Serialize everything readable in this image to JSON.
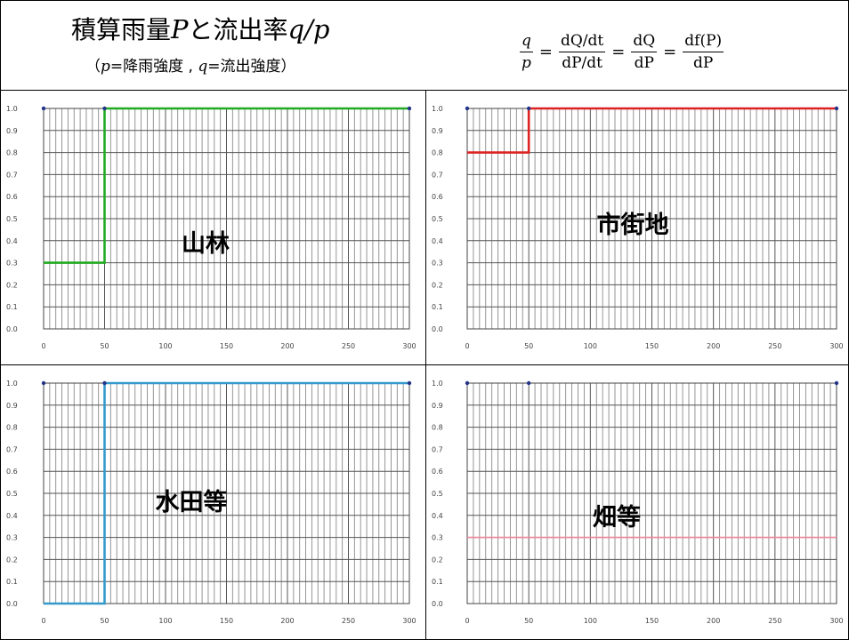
{
  "header": {
    "title_kanji": "積算雨量",
    "title_P": "P",
    "title_mid": "と流出率",
    "title_qp": "q/p",
    "subtitle_open": "（",
    "subtitle_p": "p",
    "subtitle_mid": "=降雨強度 , ",
    "subtitle_q": "q",
    "subtitle_end": "=流出強度）",
    "formula": {
      "lhs_num": "q",
      "lhs_den": "p",
      "eq": "=",
      "f1_num": "dQ/dt",
      "f1_den": "dP/dt",
      "f2_num": "dQ",
      "f2_den": "dP",
      "f3_num": "df(P)",
      "f3_den": "dP"
    }
  },
  "chart_data": [
    {
      "type": "line",
      "label": "山林",
      "color": "#22aa22",
      "x": [
        0,
        50,
        50,
        300
      ],
      "y": [
        0.3,
        0.3,
        1.0,
        1.0
      ],
      "xlim": [
        0,
        300
      ],
      "ylim": [
        0.0,
        1.0
      ],
      "x_ticks": [
        "0",
        "50",
        "100",
        "150",
        "200",
        "250",
        "300"
      ],
      "y_ticks": [
        "0.0",
        "0.1",
        "0.2",
        "0.3",
        "0.4",
        "0.5",
        "0.6",
        "0.7",
        "0.8",
        "0.9",
        "1.0"
      ],
      "markers": [
        {
          "x": 0,
          "y": 1.0
        },
        {
          "x": 50,
          "y": 1.0
        },
        {
          "x": 300,
          "y": 1.0
        }
      ],
      "grid": true
    },
    {
      "type": "line",
      "label": "市街地",
      "color": "#dd2222",
      "x": [
        0,
        50,
        50,
        300
      ],
      "y": [
        0.8,
        0.8,
        1.0,
        1.0
      ],
      "xlim": [
        0,
        300
      ],
      "ylim": [
        0.0,
        1.0
      ],
      "x_ticks": [
        "0",
        "50",
        "100",
        "150",
        "200",
        "250",
        "300"
      ],
      "y_ticks": [
        "0.0",
        "0.1",
        "0.2",
        "0.3",
        "0.4",
        "0.5",
        "0.6",
        "0.7",
        "0.8",
        "0.9",
        "1.0"
      ],
      "markers": [
        {
          "x": 0,
          "y": 1.0
        },
        {
          "x": 50,
          "y": 1.0
        },
        {
          "x": 300,
          "y": 1.0
        }
      ],
      "grid": true
    },
    {
      "type": "line",
      "label": "水田等",
      "color": "#3399cc",
      "x": [
        0,
        50,
        50,
        300
      ],
      "y": [
        0.0,
        0.0,
        1.0,
        1.0
      ],
      "xlim": [
        0,
        300
      ],
      "ylim": [
        0.0,
        1.0
      ],
      "x_ticks": [
        "0",
        "50",
        "100",
        "150",
        "200",
        "250",
        "300"
      ],
      "y_ticks": [
        "0.0",
        "0.1",
        "0.2",
        "0.3",
        "0.4",
        "0.5",
        "0.6",
        "0.7",
        "0.8",
        "0.9",
        "1.0"
      ],
      "markers": [
        {
          "x": 0,
          "y": 1.0
        },
        {
          "x": 50,
          "y": 1.0
        },
        {
          "x": 300,
          "y": 1.0
        }
      ],
      "grid": true
    },
    {
      "type": "line",
      "label": "畑等",
      "color": "#ee8899",
      "x": [
        0,
        300
      ],
      "y": [
        0.3,
        0.3
      ],
      "xlim": [
        0,
        300
      ],
      "ylim": [
        0.0,
        1.0
      ],
      "x_ticks": [
        "0",
        "50",
        "100",
        "150",
        "200",
        "250",
        "300"
      ],
      "y_ticks": [
        "0.0",
        "0.1",
        "0.2",
        "0.3",
        "0.4",
        "0.5",
        "0.6",
        "0.7",
        "0.8",
        "0.9",
        "1.0"
      ],
      "markers": [
        {
          "x": 0,
          "y": 1.0
        },
        {
          "x": 50,
          "y": 1.0
        },
        {
          "x": 300,
          "y": 1.0
        }
      ],
      "grid": true
    }
  ]
}
